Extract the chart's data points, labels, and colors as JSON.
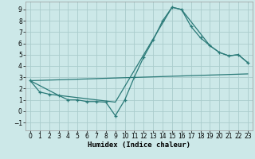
{
  "xlabel": "Humidex (Indice chaleur)",
  "background_color": "#cce8e8",
  "grid_color": "#aacccc",
  "line_color": "#2a7a78",
  "xlim": [
    -0.5,
    23.5
  ],
  "ylim": [
    -1.7,
    9.7
  ],
  "xticks": [
    0,
    1,
    2,
    3,
    4,
    5,
    6,
    7,
    8,
    9,
    10,
    11,
    12,
    13,
    14,
    15,
    16,
    17,
    18,
    19,
    20,
    21,
    22,
    23
  ],
  "yticks": [
    -1,
    0,
    1,
    2,
    3,
    4,
    5,
    6,
    7,
    8,
    9
  ],
  "curve1_x": [
    0,
    1,
    2,
    3,
    4,
    5,
    6,
    7,
    8,
    9,
    10,
    11,
    12,
    13,
    14,
    15,
    16,
    17,
    18,
    19,
    20,
    21,
    22,
    23
  ],
  "curve1_y": [
    2.7,
    1.7,
    1.5,
    1.4,
    1.0,
    1.0,
    0.85,
    0.85,
    0.8,
    -0.4,
    1.0,
    3.0,
    4.8,
    6.3,
    8.0,
    9.2,
    9.0,
    7.5,
    6.5,
    5.8,
    5.2,
    4.9,
    5.0,
    4.3
  ],
  "curve2_x": [
    0,
    3,
    9,
    15,
    16,
    19,
    20,
    21,
    22,
    23
  ],
  "curve2_y": [
    2.7,
    1.4,
    0.8,
    9.2,
    9.0,
    5.8,
    5.2,
    4.9,
    5.0,
    4.3
  ],
  "curve3_x": [
    0,
    23
  ],
  "curve3_y": [
    2.7,
    3.3
  ],
  "tick_fontsize": 5.5,
  "xlabel_fontsize": 6.5
}
